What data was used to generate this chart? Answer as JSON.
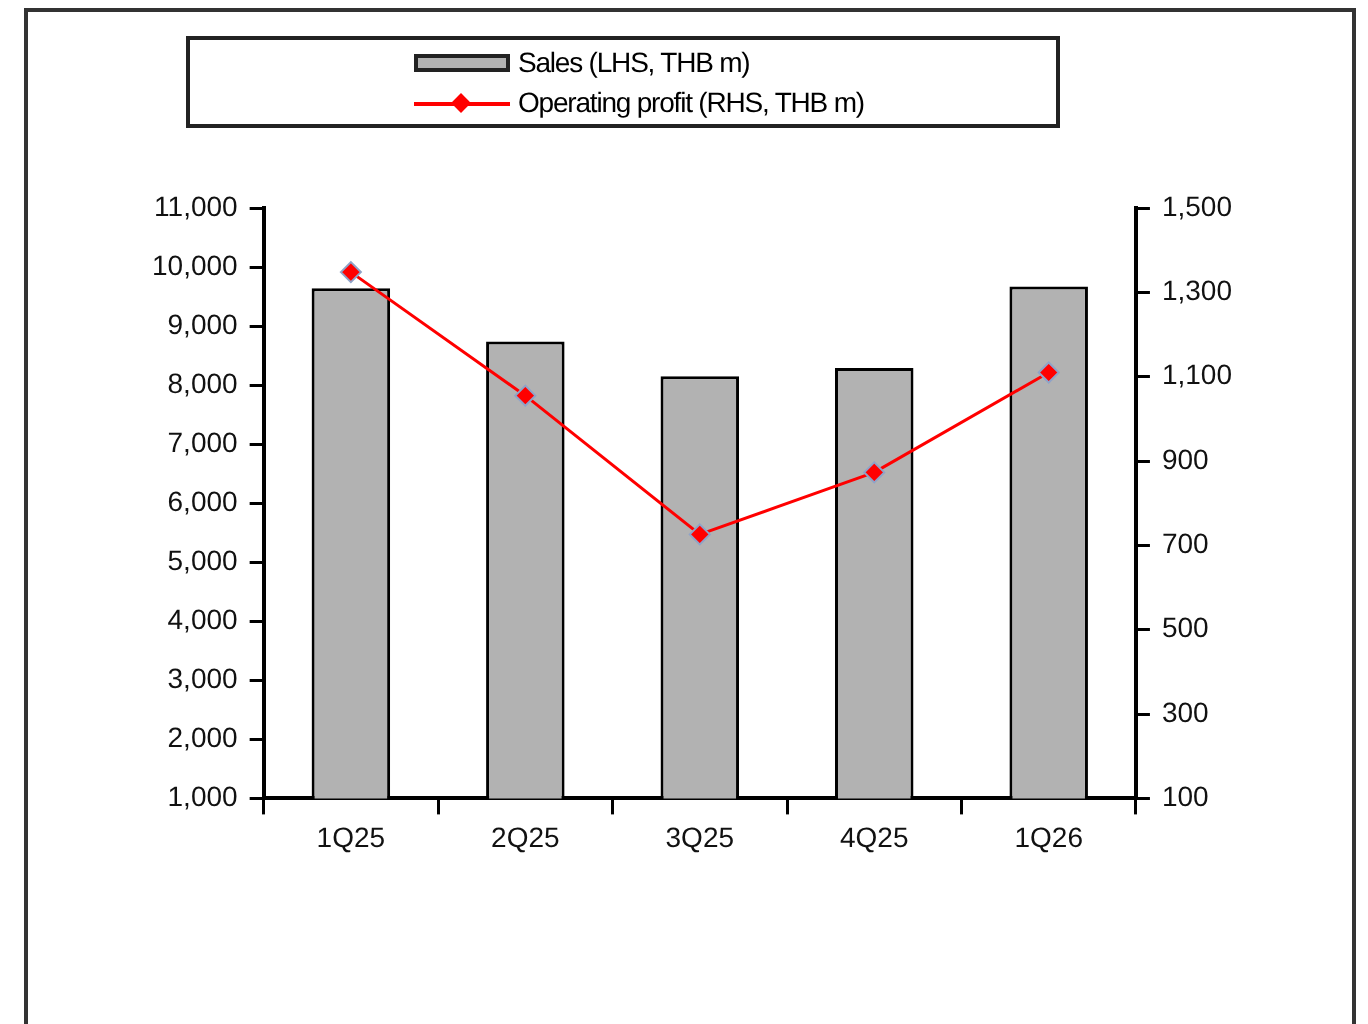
{
  "chart_data": {
    "type": "bar",
    "categories": [
      "1Q25",
      "2Q25",
      "3Q25",
      "4Q25",
      "1Q26"
    ],
    "series": [
      {
        "name": "Sales (LHS, THB m)",
        "color": "#b2b2b2",
        "values": [
          9640,
          8740,
          8150,
          8290,
          9670
        ]
      },
      {
        "name": "Operating profit (RHS, THB m)",
        "type": "line",
        "axis": "y2",
        "color": "#ff0000",
        "values": [
          1348,
          1055,
          726,
          873,
          1110
        ]
      }
    ],
    "ylim": [
      1000,
      11000
    ],
    "yticks": [
      {
        "value": 1000,
        "label": "1,000"
      },
      {
        "value": 2000,
        "label": "2,000"
      },
      {
        "value": 3000,
        "label": "3,000"
      },
      {
        "value": 4000,
        "label": "4,000"
      },
      {
        "value": 5000,
        "label": "5,000"
      },
      {
        "value": 6000,
        "label": "6,000"
      },
      {
        "value": 7000,
        "label": "7,000"
      },
      {
        "value": 8000,
        "label": "8,000"
      },
      {
        "value": 9000,
        "label": "9,000"
      },
      {
        "value": 10000,
        "label": "10,000"
      },
      {
        "value": 11000,
        "label": "11,000"
      }
    ],
    "y2lim": [
      100,
      1500
    ],
    "y2ticks": [
      100,
      300,
      500,
      700,
      900,
      {
        "value": 1100,
        "label": "1,100"
      },
      {
        "value": 1300,
        "label": "1,300"
      },
      {
        "value": 1500,
        "label": "1,500"
      }
    ],
    "grid": false,
    "legend": "top",
    "marker": "diamond",
    "line_style": "solid"
  }
}
